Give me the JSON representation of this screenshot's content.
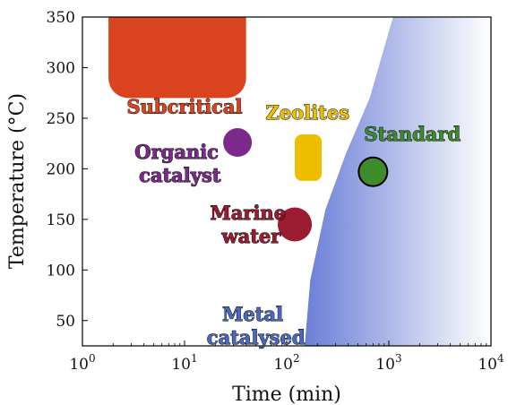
{
  "chart_data": {
    "type": "scatter",
    "xlabel": "Time (min)",
    "ylabel": "Temperature (°C)",
    "xscale": "log",
    "xlim": [
      1,
      10000
    ],
    "ylim": [
      25,
      350
    ],
    "grid": false,
    "x_ticks": [
      {
        "value": 1,
        "base": "10",
        "exp": "0"
      },
      {
        "value": 10,
        "base": "10",
        "exp": "1"
      },
      {
        "value": 100,
        "base": "10",
        "exp": "2"
      },
      {
        "value": 1000,
        "base": "10",
        "exp": "3"
      },
      {
        "value": 10000,
        "base": "10",
        "exp": "4"
      }
    ],
    "y_ticks": [
      50,
      100,
      150,
      200,
      250,
      300,
      350
    ],
    "regions": [
      {
        "name": "Subcritical",
        "shape": "rect",
        "x_range": [
          1.8,
          40
        ],
        "y_range": [
          270,
          350
        ],
        "color": "#d9441f",
        "label_at": [
          10,
          255
        ]
      },
      {
        "name": "Zeolites",
        "shape": "rect",
        "x_range": [
          120,
          220
        ],
        "y_range": [
          188,
          234
        ],
        "color": "#f0be00",
        "label_lines": [
          "Zeolites"
        ],
        "label_at": [
          160,
          249
        ]
      },
      {
        "name": "Organic catalyst",
        "shape": "circle",
        "x": 33,
        "y": 226,
        "color": "#7b2a8c",
        "label_lines": [
          "Organic",
          "catalyst"
        ],
        "label_at": [
          9,
          210
        ]
      },
      {
        "name": "Marine water",
        "shape": "circle",
        "x": 120,
        "y": 145,
        "color": "#9b1b30",
        "label_lines": [
          "Marine",
          "water"
        ],
        "label_at": [
          45,
          150
        ]
      },
      {
        "name": "Standard",
        "shape": "circle",
        "x": 700,
        "y": 197,
        "color": "#3d8b2a",
        "outlined": true,
        "label_lines": [
          "Standard"
        ],
        "label_at": [
          1700,
          228
        ]
      },
      {
        "name": "Metal catalysed",
        "shape": "gradient-area",
        "boundary": [
          [
            150,
            25
          ],
          [
            170,
            90
          ],
          [
            240,
            160
          ],
          [
            380,
            215
          ],
          [
            650,
            270
          ],
          [
            1100,
            350
          ]
        ],
        "color": "#6b7fd7",
        "fade_to_x": 10000,
        "label_lines": [
          "Metal",
          "catalysed"
        ],
        "label_at": [
          50,
          50
        ]
      }
    ]
  },
  "labels": {
    "subcritical": "Subcritical",
    "zeolites": "Zeolites",
    "organic_1": "Organic",
    "organic_2": "catalyst",
    "marine_1": "Marine",
    "marine_2": "water",
    "standard": "Standard",
    "metal_1": "Metal",
    "metal_2": "catalysed"
  },
  "colors": {
    "subcritical": "#d9441f",
    "zeolites": "#f0be00",
    "organic": "#7b2a8c",
    "marine": "#9b1b30",
    "standard": "#3d8b2a",
    "metal": "#6b7fd7",
    "metal_label": "#4a69bd"
  }
}
